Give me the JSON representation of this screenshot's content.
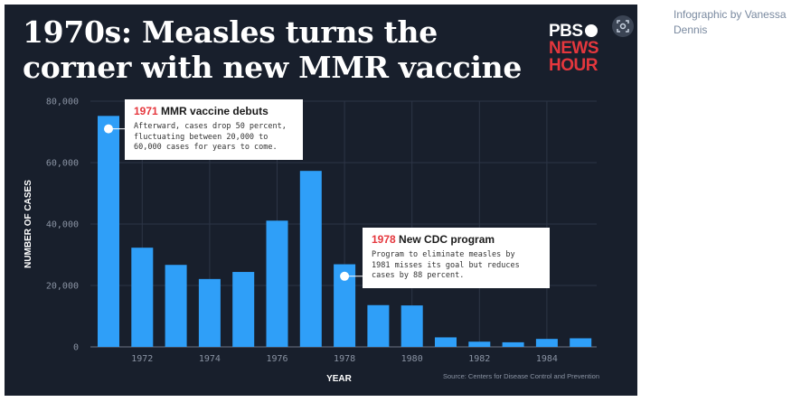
{
  "header": {
    "title": "1970s: Measles turns the corner with new MMR vaccine"
  },
  "logo": {
    "line1": "PBS",
    "line2": "NEWS",
    "line3": "HOUR"
  },
  "credit": "Infographic by Vanessa Dennis",
  "colors": {
    "background": "#181f2c",
    "bar": "#2f9ff8",
    "accent": "#e5373d",
    "grid": "#2d3546"
  },
  "icons": {
    "lens": "lens-search-icon"
  },
  "chart_data": {
    "type": "bar",
    "x": [
      1971,
      1972,
      1973,
      1974,
      1975,
      1976,
      1977,
      1978,
      1979,
      1980,
      1981,
      1982,
      1983,
      1984,
      1985
    ],
    "values": [
      75200,
      32300,
      26700,
      22100,
      24400,
      41100,
      57300,
      26900,
      13600,
      13500,
      3100,
      1700,
      1500,
      2600,
      2800
    ],
    "xticks": [
      "1972",
      "1974",
      "1976",
      "1978",
      "1980",
      "1982",
      "1984"
    ],
    "yticks": [
      "0",
      "20,000",
      "40,000",
      "60,000",
      "80,000"
    ],
    "ylim": [
      0,
      80000
    ],
    "xlabel": "YEAR",
    "ylabel": "NUMBER OF CASES",
    "grid": true,
    "source": "Source: Centers for Disease Control and Prevention",
    "annotations": [
      {
        "year_label": "1971",
        "title": "MMR vaccine debuts",
        "x": 1971,
        "y": 71000,
        "lines": [
          "Afterward, cases drop 50 percent,",
          "fluctuating between 20,000 to",
          "60,000 cases for years to come."
        ]
      },
      {
        "year_label": "1978",
        "title": "New CDC program",
        "x": 1978,
        "y": 23000,
        "lines": [
          "Program to eliminate measles by",
          "1981 misses its goal but reduces",
          "cases by 88 percent."
        ]
      }
    ]
  }
}
